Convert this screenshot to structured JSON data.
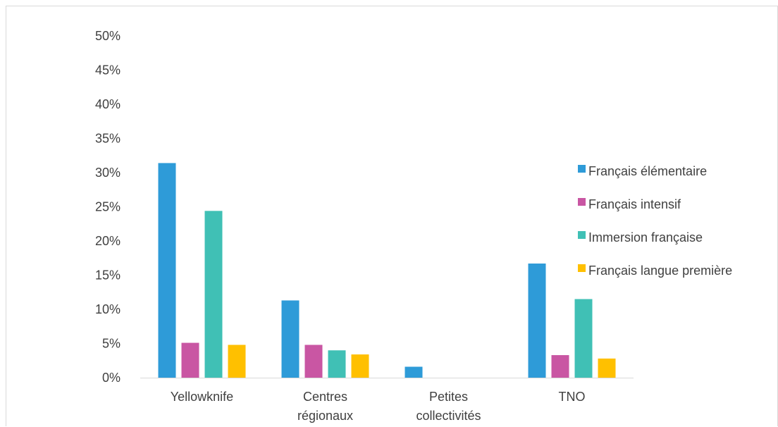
{
  "chart_data": {
    "type": "bar",
    "categories": [
      [
        "Yellowknife"
      ],
      [
        "Centres",
        "régionaux"
      ],
      [
        "Petites",
        "collectivités"
      ],
      [
        "TNO"
      ]
    ],
    "series": [
      {
        "name": "Français élémentaire",
        "color": "#2e9bd8",
        "values": [
          31.4,
          11.3,
          1.6,
          16.7
        ]
      },
      {
        "name": "Français intensif",
        "color": "#c956a3",
        "values": [
          5.1,
          4.8,
          0,
          3.3
        ]
      },
      {
        "name": "Immersion française",
        "color": "#40c0b5",
        "values": [
          24.4,
          4.0,
          0,
          11.5
        ]
      },
      {
        "name": "Français langue première",
        "color": "#ffc000",
        "values": [
          4.8,
          3.4,
          0,
          2.8
        ]
      }
    ],
    "ylim": [
      0,
      50
    ],
    "yticks": [
      "0%",
      "5%",
      "10%",
      "15%",
      "20%",
      "25%",
      "30%",
      "35%",
      "40%",
      "45%",
      "50%"
    ],
    "title": "",
    "xlabel": "",
    "ylabel": "",
    "legend_position": "right",
    "grid": false
  }
}
